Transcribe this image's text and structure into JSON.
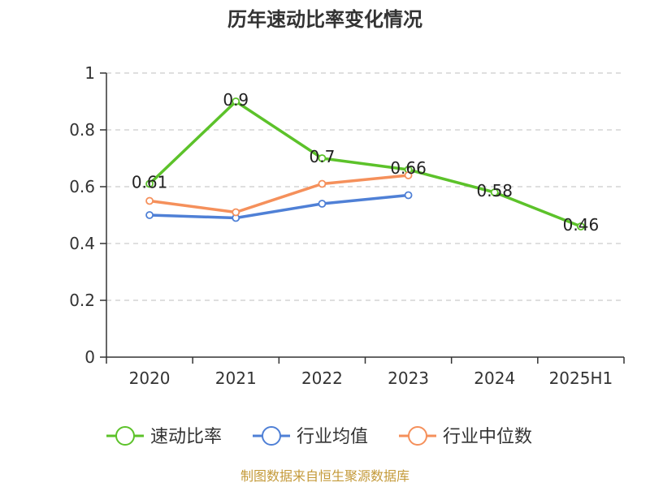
{
  "chart_data": {
    "type": "line",
    "title": "历年速动比率变化情况",
    "categories": [
      "2020",
      "2021",
      "2022",
      "2023",
      "2024",
      "2025H1"
    ],
    "ylim": [
      0,
      1
    ],
    "yticks": [
      "0",
      "0.2",
      "0.4",
      "0.6",
      "0.8",
      "1"
    ],
    "ytick_values": [
      0,
      0.2,
      0.4,
      0.6,
      0.8,
      1
    ],
    "grid": true,
    "legend_position": "bottom",
    "series": [
      {
        "name": "速动比率",
        "color": "#5cc22a",
        "values": [
          0.61,
          0.9,
          0.7,
          0.66,
          0.58,
          0.46
        ],
        "labels": [
          "0.61",
          "0.9",
          "0.7",
          "0.66",
          "0.58",
          "0.46"
        ]
      },
      {
        "name": "行业均值",
        "color": "#4f80d6",
        "values": [
          0.5,
          0.49,
          0.54,
          0.57,
          null,
          null
        ]
      },
      {
        "name": "行业中位数",
        "color": "#f5905b",
        "values": [
          0.55,
          0.51,
          0.61,
          0.64,
          null,
          null
        ]
      }
    ]
  },
  "source_text": "制图数据来自恒生聚源数据库"
}
